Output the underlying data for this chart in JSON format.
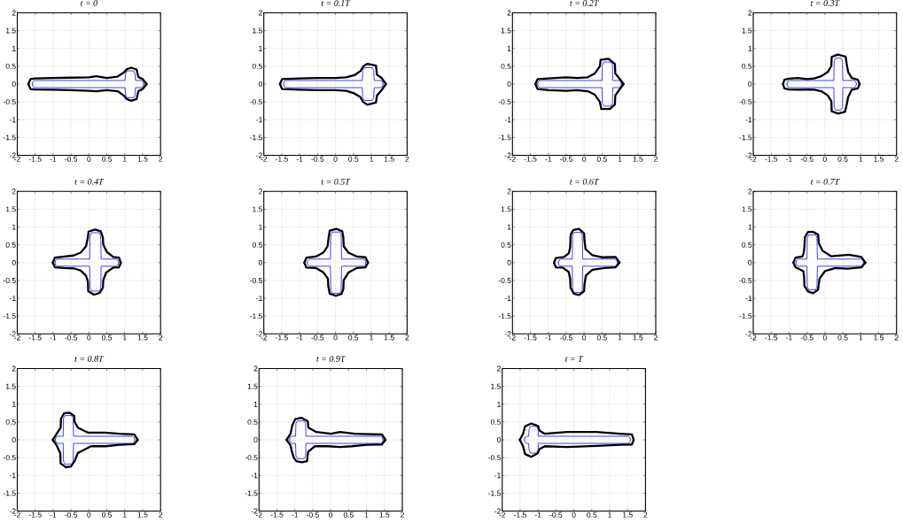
{
  "chart_data": [
    {
      "type": "line",
      "title": "t = 0",
      "xlim": [
        -2,
        2
      ],
      "ylim": [
        -2,
        2
      ],
      "xticks": [
        -2,
        -1.5,
        -1,
        -0.5,
        0,
        0.5,
        1,
        1.5,
        2
      ],
      "yticks": [
        -2,
        -1.5,
        -1,
        -0.5,
        0,
        0.5,
        1,
        1.5,
        2
      ],
      "grid": true,
      "series": [
        {
          "color": "#000000",
          "x": [
            -1.69,
            -1.63,
            -1.5,
            -1.0,
            -0.5,
            0.0,
            0.2,
            0.5,
            0.8,
            0.98,
            1.06,
            1.18,
            1.33,
            1.38,
            1.5,
            1.61
          ],
          "values": [
            0,
            0.14,
            0.16,
            0.17,
            0.18,
            0.19,
            0.22,
            0.17,
            0.21,
            0.33,
            0.42,
            0.46,
            0.41,
            0.2,
            0.14,
            0
          ]
        },
        {
          "color": "#000000",
          "x": [
            -1.69,
            -1.63,
            -1.5,
            -1.0,
            -0.5,
            0.0,
            0.2,
            0.5,
            0.8,
            0.97,
            1.05,
            1.18,
            1.33,
            1.38,
            1.5,
            1.61
          ],
          "values": [
            0,
            -0.14,
            -0.15,
            -0.16,
            -0.17,
            -0.19,
            -0.2,
            -0.17,
            -0.2,
            -0.32,
            -0.42,
            -0.47,
            -0.42,
            -0.2,
            -0.14,
            0
          ]
        },
        {
          "color": "#0000ff",
          "x": [
            -1.58,
            -1.56,
            -1.51,
            1.01,
            1.02,
            1.06,
            1.25,
            1.29,
            1.3,
            1.46,
            1.51,
            1.53
          ],
          "values": [
            0,
            0.07,
            0.1,
            0.1,
            0.29,
            0.37,
            0.37,
            0.29,
            0.1,
            0.1,
            0.07,
            0
          ]
        },
        {
          "color": "#0000ff",
          "x": [
            -1.58,
            -1.56,
            -1.51,
            1.01,
            1.02,
            1.06,
            1.25,
            1.29,
            1.3,
            1.46,
            1.51,
            1.53
          ],
          "values": [
            0,
            -0.07,
            -0.1,
            -0.1,
            -0.3,
            -0.38,
            -0.38,
            -0.3,
            -0.1,
            -0.1,
            -0.07,
            0
          ]
        }
      ]
    },
    {
      "type": "line",
      "title": "t = 0.1T",
      "xlim": [
        -2,
        2
      ],
      "ylim": [
        -2,
        2
      ],
      "xticks": [
        -2,
        -1.5,
        -1,
        -0.5,
        0,
        0.5,
        1,
        1.5,
        2
      ],
      "yticks": [
        -2,
        -1.5,
        -1,
        -0.5,
        0,
        0.5,
        1,
        1.5,
        2
      ],
      "grid": true,
      "series": [
        {
          "color": "#000000",
          "x": [
            -1.55,
            -1.49,
            -1.0,
            -0.5,
            0.0,
            0.3,
            0.55,
            0.7,
            0.78,
            0.89,
            1.13,
            1.16,
            1.28,
            1.41
          ],
          "values": [
            0,
            0.14,
            0.16,
            0.17,
            0.17,
            0.19,
            0.26,
            0.37,
            0.5,
            0.57,
            0.52,
            0.26,
            0.18,
            0
          ]
        },
        {
          "color": "#000000",
          "x": [
            -1.55,
            -1.49,
            -1.0,
            -0.5,
            0.0,
            0.3,
            0.52,
            0.69,
            0.77,
            0.89,
            1.13,
            1.16,
            1.28,
            1.41
          ],
          "values": [
            0,
            -0.14,
            -0.16,
            -0.17,
            -0.17,
            -0.19,
            -0.26,
            -0.36,
            -0.5,
            -0.58,
            -0.52,
            -0.32,
            -0.18,
            0
          ]
        },
        {
          "color": "#0000ff",
          "x": [
            -1.45,
            -1.43,
            -1.38,
            0.75,
            0.76,
            0.8,
            1.03,
            1.07,
            1.08,
            1.26,
            1.31,
            1.33
          ],
          "values": [
            0,
            0.07,
            0.1,
            0.1,
            0.38,
            0.46,
            0.46,
            0.38,
            0.1,
            0.1,
            0.07,
            0
          ]
        },
        {
          "color": "#0000ff",
          "x": [
            -1.45,
            -1.43,
            -1.38,
            0.75,
            0.76,
            0.8,
            1.03,
            1.07,
            1.08,
            1.26,
            1.31,
            1.33
          ],
          "values": [
            0,
            -0.07,
            -0.1,
            -0.1,
            -0.38,
            -0.46,
            -0.46,
            -0.38,
            -0.1,
            -0.1,
            -0.07,
            0
          ]
        }
      ]
    },
    {
      "type": "line",
      "title": "t = 0.2T",
      "xlim": [
        -2,
        2
      ],
      "ylim": [
        -2,
        2
      ],
      "xticks": [
        -2,
        -1.5,
        -1,
        -0.5,
        0,
        0.5,
        1,
        1.5,
        2
      ],
      "yticks": [
        -2,
        -1.5,
        -1,
        -0.5,
        0,
        0.5,
        1,
        1.5,
        2
      ],
      "grid": true,
      "series": [
        {
          "color": "#000000",
          "x": [
            -1.36,
            -1.3,
            -1.0,
            -0.5,
            -0.2,
            0.1,
            0.3,
            0.44,
            0.46,
            0.68,
            0.86,
            0.87,
            0.99,
            1.1
          ],
          "values": [
            0,
            0.14,
            0.16,
            0.19,
            0.17,
            0.19,
            0.3,
            0.5,
            0.68,
            0.71,
            0.56,
            0.3,
            0.15,
            0
          ]
        },
        {
          "color": "#000000",
          "x": [
            -1.36,
            -1.3,
            -1.0,
            -0.5,
            -0.2,
            0.1,
            0.3,
            0.44,
            0.48,
            0.72,
            0.86,
            0.87,
            0.99,
            1.1
          ],
          "values": [
            0,
            -0.14,
            -0.17,
            -0.19,
            -0.17,
            -0.2,
            -0.3,
            -0.5,
            -0.7,
            -0.7,
            -0.57,
            -0.32,
            -0.15,
            0
          ]
        },
        {
          "color": "#0000ff",
          "x": [
            -1.3,
            -1.28,
            -1.23,
            0.5,
            0.51,
            0.55,
            0.75,
            0.79,
            0.8,
            0.97,
            1.02,
            1.04
          ],
          "values": [
            0,
            0.07,
            0.1,
            0.1,
            0.54,
            0.62,
            0.62,
            0.54,
            0.1,
            0.1,
            0.07,
            0
          ]
        },
        {
          "color": "#0000ff",
          "x": [
            -1.3,
            -1.28,
            -1.23,
            0.5,
            0.51,
            0.55,
            0.75,
            0.79,
            0.8,
            0.97,
            1.02,
            1.04
          ],
          "values": [
            0,
            -0.07,
            -0.1,
            -0.1,
            -0.54,
            -0.62,
            -0.62,
            -0.54,
            -0.1,
            -0.1,
            -0.07,
            0
          ]
        }
      ]
    },
    {
      "type": "line",
      "title": "t = 0.3T",
      "xlim": [
        -2,
        2
      ],
      "ylim": [
        -2,
        2
      ],
      "xticks": [
        -2,
        -1.5,
        -1,
        -0.5,
        0,
        0.5,
        1,
        1.5,
        2
      ],
      "yticks": [
        -2,
        -1.5,
        -1,
        -0.5,
        0,
        0.5,
        1,
        1.5,
        2
      ],
      "grid": true,
      "series": [
        {
          "color": "#000000",
          "x": [
            -1.17,
            -1.13,
            -1.0,
            -0.75,
            -0.5,
            -0.3,
            -0.1,
            0.08,
            0.18,
            0.19,
            0.36,
            0.58,
            0.61,
            0.65,
            0.75,
            0.92,
            0.97
          ],
          "values": [
            0,
            0.12,
            0.15,
            0.17,
            0.14,
            0.16,
            0.22,
            0.34,
            0.51,
            0.76,
            0.83,
            0.77,
            0.55,
            0.34,
            0.17,
            0.12,
            0
          ]
        },
        {
          "color": "#000000",
          "x": [
            -1.17,
            -1.13,
            -1.0,
            -0.75,
            -0.5,
            -0.3,
            -0.1,
            0.08,
            0.18,
            0.19,
            0.36,
            0.56,
            0.61,
            0.65,
            0.75,
            0.92,
            0.97
          ],
          "values": [
            0,
            -0.12,
            -0.15,
            -0.16,
            -0.15,
            -0.16,
            -0.2,
            -0.32,
            -0.48,
            -0.76,
            -0.83,
            -0.78,
            -0.57,
            -0.36,
            -0.16,
            -0.12,
            0
          ]
        },
        {
          "color": "#0000ff",
          "x": [
            -1.06,
            -1.04,
            -0.99,
            0.25,
            0.26,
            0.3,
            0.45,
            0.49,
            0.5,
            0.81,
            0.86,
            0.88
          ],
          "values": [
            0,
            0.07,
            0.1,
            0.1,
            0.65,
            0.73,
            0.73,
            0.65,
            0.1,
            0.1,
            0.07,
            0
          ]
        },
        {
          "color": "#0000ff",
          "x": [
            -1.06,
            -1.04,
            -0.99,
            0.25,
            0.26,
            0.3,
            0.45,
            0.49,
            0.5,
            0.81,
            0.86,
            0.88
          ],
          "values": [
            0,
            -0.07,
            -0.1,
            -0.1,
            -0.65,
            -0.73,
            -0.73,
            -0.65,
            -0.1,
            -0.1,
            -0.07,
            0
          ]
        }
      ]
    },
    {
      "type": "line",
      "title": "t = 0.4T",
      "xlim": [
        -2,
        2
      ],
      "ylim": [
        -2,
        2
      ],
      "xticks": [
        -2,
        -1.5,
        -1,
        -0.5,
        0,
        0.5,
        1,
        1.5,
        2
      ],
      "yticks": [
        -2,
        -1.5,
        -1,
        -0.5,
        0,
        0.5,
        1,
        1.5,
        2
      ],
      "grid": true,
      "series": [
        {
          "color": "#000000",
          "x": [
            -1.01,
            -0.95,
            -0.68,
            -0.43,
            -0.23,
            -0.08,
            -0.03,
            -0.01,
            0.17,
            0.33,
            0.39,
            0.4,
            0.5,
            0.68,
            0.84,
            0.89
          ],
          "values": [
            0,
            0.14,
            0.17,
            0.2,
            0.28,
            0.46,
            0.71,
            0.87,
            0.93,
            0.88,
            0.71,
            0.51,
            0.3,
            0.16,
            0.14,
            0
          ]
        },
        {
          "color": "#000000",
          "x": [
            -1.01,
            -0.95,
            -0.68,
            -0.43,
            -0.23,
            -0.08,
            -0.03,
            -0.02,
            0.14,
            0.3,
            0.39,
            0.4,
            0.48,
            0.68,
            0.84,
            0.89
          ],
          "values": [
            0,
            -0.13,
            -0.15,
            -0.16,
            -0.22,
            -0.37,
            -0.53,
            -0.8,
            -0.9,
            -0.85,
            -0.7,
            -0.49,
            -0.28,
            -0.14,
            -0.13,
            0
          ]
        },
        {
          "color": "#0000ff",
          "x": [
            -0.95,
            -0.93,
            -0.88,
            0.02,
            0.03,
            0.07,
            0.29,
            0.33,
            0.34,
            0.76,
            0.81,
            0.83
          ],
          "values": [
            0,
            0.07,
            0.1,
            0.1,
            0.76,
            0.84,
            0.84,
            0.76,
            0.1,
            0.1,
            0.07,
            0
          ]
        },
        {
          "color": "#0000ff",
          "x": [
            -0.95,
            -0.93,
            -0.88,
            0.02,
            0.03,
            0.07,
            0.29,
            0.33,
            0.34,
            0.76,
            0.81,
            0.83
          ],
          "values": [
            0,
            -0.07,
            -0.1,
            -0.1,
            -0.72,
            -0.8,
            -0.8,
            -0.72,
            -0.1,
            -0.1,
            -0.07,
            0
          ]
        }
      ]
    },
    {
      "type": "line",
      "title": "t = 0.5T",
      "xlim": [
        -2,
        2
      ],
      "ylim": [
        -2,
        2
      ],
      "xticks": [
        -2,
        -1.5,
        -1,
        -0.5,
        0,
        0.5,
        1,
        1.5,
        2
      ],
      "yticks": [
        -2,
        -1.5,
        -1,
        -0.5,
        0,
        0.5,
        1,
        1.5,
        2
      ],
      "grid": true,
      "series": [
        {
          "color": "#000000",
          "x": [
            -0.87,
            -0.81,
            -0.55,
            -0.34,
            -0.22,
            -0.19,
            -0.16,
            0.02,
            0.19,
            0.22,
            0.23,
            0.36,
            0.6,
            0.84,
            0.91
          ],
          "values": [
            0,
            0.14,
            0.17,
            0.28,
            0.46,
            0.71,
            0.9,
            0.95,
            0.88,
            0.71,
            0.46,
            0.28,
            0.17,
            0.15,
            0
          ]
        },
        {
          "color": "#000000",
          "x": [
            -0.87,
            -0.81,
            -0.55,
            -0.34,
            -0.21,
            -0.2,
            -0.16,
            0.01,
            0.17,
            0.22,
            0.23,
            0.36,
            0.6,
            0.84,
            0.91
          ],
          "values": [
            0,
            -0.14,
            -0.15,
            -0.27,
            -0.45,
            -0.66,
            -0.87,
            -0.93,
            -0.88,
            -0.74,
            -0.49,
            -0.28,
            -0.15,
            -0.13,
            0
          ]
        },
        {
          "color": "#0000ff",
          "x": [
            -0.79,
            -0.77,
            -0.72,
            -0.14,
            -0.13,
            -0.09,
            0.12,
            0.16,
            0.17,
            0.78,
            0.83,
            0.85
          ],
          "values": [
            0,
            0.07,
            0.1,
            0.1,
            0.78,
            0.86,
            0.86,
            0.78,
            0.1,
            0.1,
            0.07,
            0
          ]
        },
        {
          "color": "#0000ff",
          "x": [
            -0.79,
            -0.77,
            -0.72,
            -0.14,
            -0.13,
            -0.09,
            0.12,
            0.16,
            0.17,
            0.78,
            0.83,
            0.85
          ],
          "values": [
            0,
            -0.07,
            -0.1,
            -0.1,
            -0.78,
            -0.86,
            -0.86,
            -0.78,
            -0.1,
            -0.1,
            -0.07,
            0
          ]
        }
      ]
    },
    {
      "type": "line",
      "title": "t = 0.6T",
      "xlim": [
        -2,
        2
      ],
      "ylim": [
        -2,
        2
      ],
      "xticks": [
        -2,
        -1.5,
        -1,
        -0.5,
        0,
        0.5,
        1,
        1.5,
        2
      ],
      "yticks": [
        -2,
        -1.5,
        -1,
        -0.5,
        0,
        0.5,
        1,
        1.5,
        2
      ],
      "grid": true,
      "series": [
        {
          "color": "#000000",
          "x": [
            -0.84,
            -0.79,
            -0.56,
            -0.43,
            -0.39,
            -0.38,
            -0.37,
            -0.3,
            -0.14,
            0.0,
            0.01,
            0.04,
            0.23,
            0.52,
            0.88,
            0.99
          ],
          "values": [
            0,
            0.13,
            0.16,
            0.26,
            0.42,
            0.71,
            0.8,
            0.92,
            0.95,
            0.82,
            0.63,
            0.38,
            0.21,
            0.15,
            0.16,
            0
          ]
        },
        {
          "color": "#000000",
          "x": [
            -0.84,
            -0.79,
            -0.6,
            -0.43,
            -0.39,
            -0.38,
            -0.29,
            -0.14,
            0.0,
            0.01,
            0.05,
            0.23,
            0.56,
            0.88,
            0.99
          ],
          "values": [
            0,
            -0.13,
            -0.14,
            -0.26,
            -0.45,
            -0.7,
            -0.87,
            -0.91,
            -0.8,
            -0.61,
            -0.36,
            -0.2,
            -0.15,
            -0.13,
            0
          ]
        },
        {
          "color": "#0000ff",
          "x": [
            -0.72,
            -0.7,
            -0.65,
            -0.33,
            -0.32,
            -0.28,
            -0.09,
            -0.05,
            -0.04,
            0.86,
            0.91,
            0.93
          ],
          "values": [
            0,
            0.07,
            0.1,
            0.1,
            0.77,
            0.85,
            0.85,
            0.77,
            0.1,
            0.1,
            0.07,
            0
          ]
        },
        {
          "color": "#0000ff",
          "x": [
            -0.72,
            -0.7,
            -0.65,
            -0.33,
            -0.32,
            -0.28,
            -0.09,
            -0.05,
            -0.04,
            0.86,
            0.91,
            0.93
          ],
          "values": [
            0,
            -0.07,
            -0.1,
            -0.1,
            -0.76,
            -0.84,
            -0.84,
            -0.76,
            -0.1,
            -0.1,
            -0.07,
            0
          ]
        }
      ]
    },
    {
      "type": "line",
      "title": "t = 0.7T",
      "xlim": [
        -2,
        2
      ],
      "ylim": [
        -2,
        2
      ],
      "xticks": [
        -2,
        -1.5,
        -1,
        -0.5,
        0,
        0.5,
        1,
        1.5,
        2
      ],
      "yticks": [
        -2,
        -1.5,
        -1,
        -0.5,
        0,
        0.5,
        1,
        1.5,
        2
      ],
      "grid": true,
      "series": [
        {
          "color": "#000000",
          "x": [
            -0.88,
            -0.82,
            -0.63,
            -0.59,
            -0.57,
            -0.56,
            -0.47,
            -0.34,
            -0.19,
            -0.17,
            -0.07,
            0.17,
            0.67,
            1.02,
            1.13
          ],
          "values": [
            0,
            0.14,
            0.17,
            0.28,
            0.46,
            0.71,
            0.86,
            0.87,
            0.79,
            0.55,
            0.34,
            0.18,
            0.22,
            0.16,
            0
          ]
        },
        {
          "color": "#000000",
          "x": [
            -0.88,
            -0.82,
            -0.6,
            -0.58,
            -0.57,
            -0.47,
            -0.33,
            -0.19,
            -0.15,
            0.0,
            0.29,
            0.63,
            1.02,
            1.13
          ],
          "values": [
            0,
            -0.13,
            -0.24,
            -0.41,
            -0.66,
            -0.81,
            -0.86,
            -0.76,
            -0.45,
            -0.24,
            -0.15,
            -0.17,
            -0.13,
            0
          ]
        },
        {
          "color": "#0000ff",
          "x": [
            -0.81,
            -0.79,
            -0.74,
            -0.5,
            -0.49,
            -0.45,
            -0.26,
            -0.22,
            -0.21,
            1.01,
            1.06,
            1.08
          ],
          "values": [
            0,
            0.07,
            0.1,
            0.1,
            0.7,
            0.78,
            0.78,
            0.7,
            0.1,
            0.1,
            0.07,
            0
          ]
        },
        {
          "color": "#0000ff",
          "x": [
            -0.81,
            -0.79,
            -0.74,
            -0.5,
            -0.49,
            -0.45,
            -0.26,
            -0.22,
            -0.21,
            1.01,
            1.06,
            1.08
          ],
          "values": [
            0,
            -0.07,
            -0.1,
            -0.1,
            -0.68,
            -0.76,
            -0.76,
            -0.68,
            -0.1,
            -0.1,
            -0.07,
            0
          ]
        }
      ]
    },
    {
      "type": "line",
      "title": "t = 0.8T",
      "xlim": [
        -2,
        2
      ],
      "ylim": [
        -2,
        2
      ],
      "xticks": [
        -2,
        -1.5,
        -1,
        -0.5,
        0,
        0.5,
        1,
        1.5,
        2
      ],
      "yticks": [
        -2,
        -1.5,
        -1,
        -0.5,
        0,
        0.5,
        1,
        1.5,
        2
      ],
      "grid": true,
      "series": [
        {
          "color": "#000000",
          "x": [
            -1.01,
            -0.9,
            -0.79,
            -0.78,
            -0.69,
            -0.54,
            -0.41,
            -0.4,
            -0.31,
            -0.02,
            0.43,
            0.85,
            1.27,
            1.36
          ],
          "values": [
            0,
            0.17,
            0.34,
            0.59,
            0.75,
            0.76,
            0.67,
            0.51,
            0.34,
            0.2,
            0.2,
            0.17,
            0.15,
            0
          ]
        },
        {
          "color": "#000000",
          "x": [
            -1.01,
            -0.9,
            -0.8,
            -0.79,
            -0.64,
            -0.5,
            -0.39,
            -0.31,
            0.06,
            0.47,
            0.85,
            1.27,
            1.36
          ],
          "values": [
            0,
            -0.16,
            -0.37,
            -0.66,
            -0.77,
            -0.75,
            -0.58,
            -0.37,
            -0.18,
            -0.18,
            -0.14,
            -0.12,
            0
          ]
        },
        {
          "color": "#0000ff",
          "x": [
            -0.94,
            -0.92,
            -0.87,
            -0.72,
            -0.71,
            -0.67,
            -0.48,
            -0.44,
            -0.43,
            1.21,
            1.26,
            1.28
          ],
          "values": [
            0,
            0.07,
            0.1,
            0.1,
            0.6,
            0.68,
            0.68,
            0.6,
            0.1,
            0.1,
            0.07,
            0
          ]
        },
        {
          "color": "#0000ff",
          "x": [
            -0.94,
            -0.92,
            -0.87,
            -0.72,
            -0.71,
            -0.67,
            -0.48,
            -0.44,
            -0.43,
            1.21,
            1.26,
            1.28
          ],
          "values": [
            0,
            -0.07,
            -0.1,
            -0.1,
            -0.6,
            -0.68,
            -0.68,
            -0.6,
            -0.1,
            -0.1,
            -0.07,
            0
          ]
        }
      ]
    },
    {
      "type": "line",
      "title": "t = 0.9T",
      "xlim": [
        -2,
        2
      ],
      "ylim": [
        -2,
        2
      ],
      "xticks": [
        -2,
        -1.5,
        -1,
        -0.5,
        0,
        0.5,
        1,
        1.5,
        2
      ],
      "yticks": [
        -2,
        -1.5,
        -1,
        -0.5,
        0,
        0.5,
        1,
        1.5,
        2
      ],
      "grid": true,
      "series": [
        {
          "color": "#000000",
          "x": [
            -1.23,
            -1.12,
            -1.07,
            -0.99,
            -0.82,
            -0.64,
            -0.62,
            -0.4,
            0.01,
            0.26,
            0.67,
            1.09,
            1.43,
            1.53
          ],
          "values": [
            0,
            0.17,
            0.41,
            0.58,
            0.62,
            0.52,
            0.34,
            0.22,
            0.17,
            0.22,
            0.17,
            0.16,
            0.15,
            0
          ]
        },
        {
          "color": "#000000",
          "x": [
            -1.23,
            -1.12,
            -1.08,
            -1.03,
            -0.96,
            -0.8,
            -0.66,
            -0.63,
            -0.44,
            -0.07,
            0.26,
            0.59,
            1.01,
            1.43,
            1.53
          ],
          "values": [
            0,
            -0.16,
            -0.34,
            -0.5,
            -0.6,
            -0.63,
            -0.6,
            -0.34,
            -0.18,
            -0.18,
            -0.2,
            -0.18,
            -0.14,
            -0.13,
            0
          ]
        },
        {
          "color": "#0000ff",
          "x": [
            -1.15,
            -1.13,
            -1.08,
            -0.98,
            -0.97,
            -0.93,
            -0.74,
            -0.7,
            -0.69,
            1.39,
            1.44,
            1.46
          ],
          "values": [
            0,
            0.07,
            0.1,
            0.1,
            0.45,
            0.53,
            0.53,
            0.45,
            0.1,
            0.1,
            0.07,
            0
          ]
        },
        {
          "color": "#0000ff",
          "x": [
            -1.15,
            -1.13,
            -1.08,
            -0.98,
            -0.97,
            -0.93,
            -0.74,
            -0.7,
            -0.69,
            1.39,
            1.44,
            1.46
          ],
          "values": [
            0,
            -0.07,
            -0.1,
            -0.1,
            -0.45,
            -0.53,
            -0.53,
            -0.45,
            -0.1,
            -0.1,
            -0.07,
            0
          ]
        }
      ]
    },
    {
      "type": "line",
      "title": "t = T",
      "xlim": [
        -2,
        2
      ],
      "ylim": [
        -2,
        2
      ],
      "xticks": [
        -2,
        -1.5,
        -1,
        -0.5,
        0,
        0.5,
        1,
        1.5,
        2
      ],
      "yticks": [
        -2,
        -1.5,
        -1,
        -0.5,
        0,
        0.5,
        1,
        1.5,
        2
      ],
      "grid": true,
      "series": [
        {
          "color": "#000000",
          "x": [
            -1.51,
            -1.42,
            -1.36,
            -1.19,
            -1.0,
            -0.96,
            -0.81,
            -0.19,
            0.63,
            1.29,
            1.62,
            1.67
          ],
          "values": [
            0,
            0.16,
            0.38,
            0.46,
            0.39,
            0.26,
            0.17,
            0.22,
            0.22,
            0.17,
            0.15,
            0
          ]
        },
        {
          "color": "#000000",
          "x": [
            -1.51,
            -1.42,
            -1.36,
            -1.19,
            -1.01,
            -0.96,
            -0.81,
            -0.19,
            0.63,
            1.29,
            1.62,
            1.67
          ],
          "values": [
            0,
            -0.17,
            -0.4,
            -0.48,
            -0.38,
            -0.26,
            -0.18,
            -0.2,
            -0.17,
            -0.14,
            -0.13,
            0
          ]
        },
        {
          "color": "#0000ff",
          "x": [
            -1.38,
            -1.36,
            -1.31,
            -1.26,
            -1.25,
            -1.21,
            -1.04,
            -1.0,
            -0.99,
            1.51,
            1.56,
            1.58
          ],
          "values": [
            0,
            0.07,
            0.1,
            0.1,
            0.3,
            0.38,
            0.38,
            0.3,
            0.1,
            0.1,
            0.07,
            0
          ]
        },
        {
          "color": "#0000ff",
          "x": [
            -1.38,
            -1.36,
            -1.31,
            -1.26,
            -1.25,
            -1.21,
            -1.04,
            -1.0,
            -0.99,
            1.51,
            1.56,
            1.58
          ],
          "values": [
            0,
            -0.07,
            -0.1,
            -0.1,
            -0.29,
            -0.37,
            -0.37,
            -0.29,
            -0.1,
            -0.1,
            -0.07,
            0
          ]
        }
      ]
    }
  ]
}
